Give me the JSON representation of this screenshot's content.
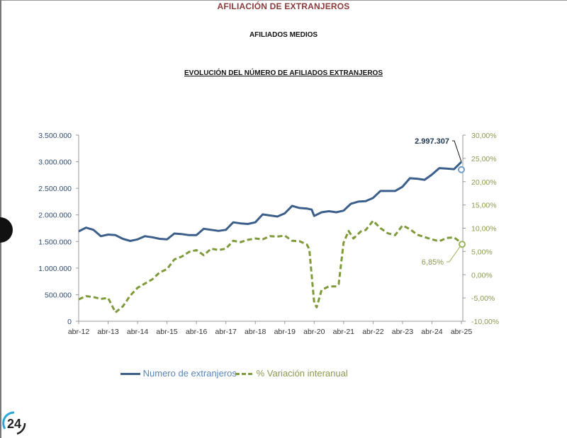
{
  "header": {
    "title": "AFILIACIÓN DE  EXTRANJEROS",
    "subtitle": "AFILIADOS MEDIOS",
    "chart_title": "EVOLUCIÓN DEL NÚMERO DE AFILIADOS EXTRANJEROS"
  },
  "logo_text": "24",
  "chart_data": {
    "type": "line",
    "title": "EVOLUCIÓN DEL NÚMERO DE AFILIADOS EXTRANJEROS",
    "xlim": [
      "2012-04",
      "2025-04"
    ],
    "x_ticks": [
      "abr-12",
      "abr-13",
      "abr-14",
      "abr-15",
      "abr-16",
      "abr-17",
      "abr-18",
      "abr-19",
      "abr-20",
      "abr-21",
      "abr-22",
      "abr-23",
      "abr-24",
      "abr-25"
    ],
    "y_left": {
      "ylim": [
        0,
        3500000
      ],
      "ticks": [
        "0",
        "500.000",
        "1.000.000",
        "1.500.000",
        "2.000.000",
        "2.500.000",
        "3.000.000",
        "3.500.000"
      ],
      "color": "#2f4b6e"
    },
    "y_right": {
      "ylim": [
        -10,
        30
      ],
      "ticks": [
        "-10,00%",
        "-5,00%",
        "0,00%",
        "5,00%",
        "10,00%",
        "15,00%",
        "20,00%",
        "25,00%",
        "30,00%"
      ],
      "color": "#8a9a50"
    },
    "grid": false,
    "legend": "bottom",
    "series": [
      {
        "name": "Numero de extranjeros",
        "axis": "left",
        "color": "#3b5f8a",
        "style": "solid",
        "x": [
          "2012-04",
          "2012-07",
          "2012-10",
          "2013-01",
          "2013-04",
          "2013-07",
          "2013-10",
          "2014-01",
          "2014-04",
          "2014-07",
          "2014-10",
          "2015-01",
          "2015-04",
          "2015-07",
          "2015-10",
          "2016-01",
          "2016-04",
          "2016-07",
          "2016-10",
          "2017-01",
          "2017-04",
          "2017-07",
          "2017-10",
          "2018-01",
          "2018-04",
          "2018-07",
          "2018-10",
          "2019-01",
          "2019-04",
          "2019-07",
          "2019-10",
          "2020-01",
          "2020-03",
          "2020-04",
          "2020-07",
          "2020-10",
          "2021-01",
          "2021-04",
          "2021-07",
          "2021-10",
          "2022-01",
          "2022-04",
          "2022-07",
          "2022-10",
          "2023-01",
          "2023-04",
          "2023-07",
          "2023-10",
          "2024-01",
          "2024-04",
          "2024-07",
          "2024-10",
          "2025-01",
          "2025-04"
        ],
        "values": [
          1690000,
          1760000,
          1720000,
          1600000,
          1630000,
          1620000,
          1550000,
          1510000,
          1540000,
          1600000,
          1580000,
          1550000,
          1540000,
          1650000,
          1640000,
          1620000,
          1620000,
          1740000,
          1720000,
          1700000,
          1720000,
          1860000,
          1840000,
          1830000,
          1860000,
          2010000,
          1990000,
          1970000,
          2030000,
          2170000,
          2130000,
          2120000,
          2100000,
          1980000,
          2050000,
          2070000,
          2050000,
          2080000,
          2210000,
          2250000,
          2260000,
          2320000,
          2450000,
          2450000,
          2450000,
          2530000,
          2690000,
          2680000,
          2660000,
          2760000,
          2880000,
          2870000,
          2860000,
          2997307
        ]
      },
      {
        "name": "% Variación interanual",
        "axis": "right",
        "color": "#7f9a3a",
        "style": "dashed",
        "x": [
          "2012-04",
          "2012-07",
          "2012-10",
          "2013-01",
          "2013-04",
          "2013-07",
          "2013-10",
          "2014-01",
          "2014-04",
          "2014-07",
          "2014-10",
          "2015-01",
          "2015-04",
          "2015-07",
          "2015-10",
          "2016-01",
          "2016-04",
          "2016-07",
          "2016-10",
          "2017-01",
          "2017-04",
          "2017-07",
          "2017-10",
          "2018-01",
          "2018-04",
          "2018-07",
          "2018-10",
          "2019-01",
          "2019-04",
          "2019-07",
          "2019-10",
          "2020-01",
          "2020-02",
          "2020-04",
          "2020-05",
          "2020-07",
          "2020-10",
          "2021-01",
          "2021-02",
          "2021-04",
          "2021-06",
          "2021-08",
          "2021-11",
          "2022-01",
          "2022-04",
          "2022-07",
          "2022-10",
          "2023-01",
          "2023-04",
          "2023-07",
          "2023-10",
          "2024-01",
          "2024-04",
          "2024-07",
          "2024-10",
          "2025-01",
          "2025-04"
        ],
        "values": [
          -5.3,
          -4.6,
          -4.8,
          -5.2,
          -5.0,
          -8.1,
          -6.8,
          -4.5,
          -2.8,
          -1.9,
          -1.0,
          0.5,
          1.2,
          3.3,
          3.9,
          4.9,
          5.3,
          4.2,
          5.6,
          5.3,
          5.6,
          7.3,
          7.0,
          7.5,
          7.8,
          7.6,
          8.3,
          8.2,
          8.4,
          7.3,
          7.2,
          6.5,
          5.5,
          -6.0,
          -7.0,
          -3.3,
          -2.5,
          -2.5,
          -2.0,
          6.9,
          9.4,
          7.8,
          9.3,
          9.6,
          11.6,
          10.0,
          8.9,
          8.5,
          10.6,
          9.8,
          8.6,
          8.1,
          7.6,
          7.2,
          7.9,
          8.0,
          6.85
        ]
      }
    ],
    "annotations": [
      {
        "series": "Numero de extranjeros",
        "x": "2025-04",
        "label": "2.997.307"
      },
      {
        "series": "% Variación interanual",
        "x": "2025-04",
        "label": "6,85%"
      }
    ]
  }
}
